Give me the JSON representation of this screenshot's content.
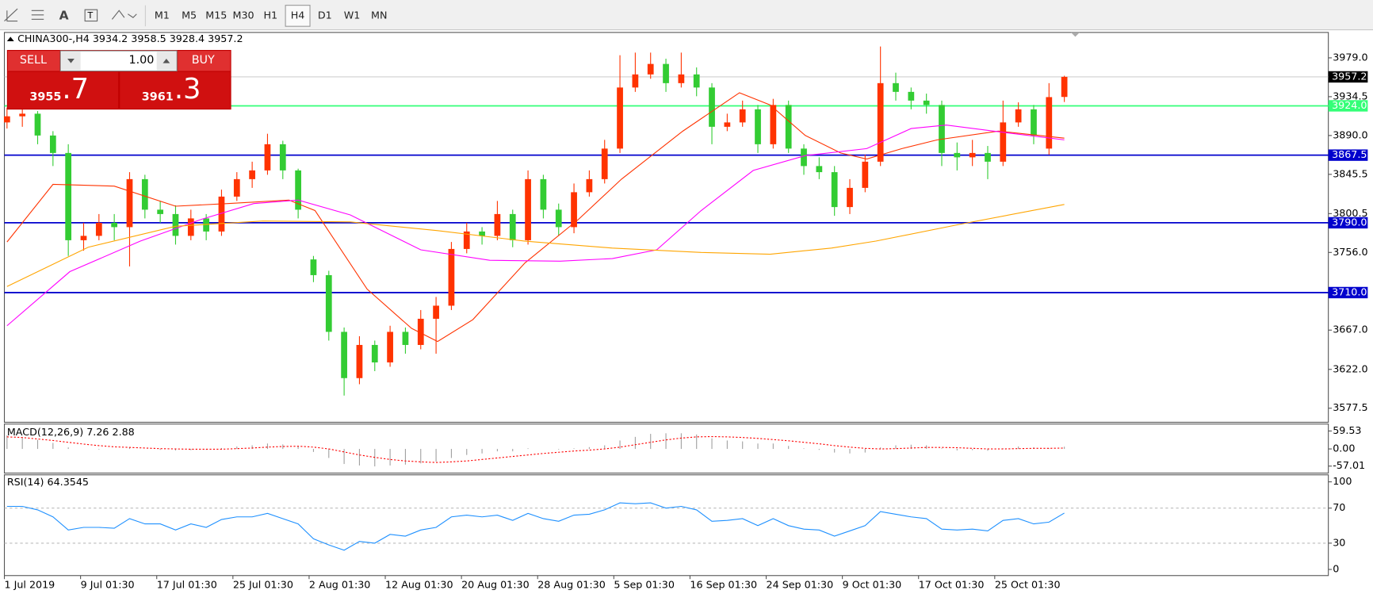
{
  "toolbar": {
    "tools": [
      "A"
    ],
    "timeframes": [
      "M1",
      "M5",
      "M15",
      "M30",
      "H1",
      "H4",
      "D1",
      "W1",
      "MN"
    ],
    "active_index": 5
  },
  "trade_panel": {
    "sell": "SELL",
    "lots": "1.00",
    "buy": "BUY",
    "bid_main": "3955",
    "bid_frac": ".7",
    "ask_main": "3961",
    "ask_frac": ".3"
  },
  "time_axis": [
    "1 Jul 2019",
    "9 Jul 01:30",
    "17 Jul 01:30",
    "25 Jul 01:30",
    "2 Aug 01:30",
    "12 Aug 01:30",
    "20 Aug 01:30",
    "28 Aug 01:30",
    "5 Sep 01:30",
    "16 Sep 01:30",
    "24 Sep 01:30",
    "9 Oct 01:30",
    "17 Oct 01:30",
    "25 Oct 01:30"
  ],
  "chart_data": [
    {
      "type": "candlestick",
      "title": "CHINA300-,H4  3934.2 3958.5 3928.4 3957.2",
      "up_color": "#ff3300",
      "down_color": "#33cc33",
      "ylim": [
        3561.4,
        4008.1
      ],
      "yticks": [
        {
          "value": 3979,
          "label": "3979.0"
        },
        3934.5,
        {
          "value": 3890,
          "label": "3890.0"
        },
        3845.5,
        3800.5,
        {
          "value": 3756,
          "label": "3756.0"
        },
        {
          "value": 3667,
          "label": "3667.0"
        },
        {
          "value": 3622,
          "label": "3622.0"
        },
        3577.5
      ],
      "levels": [
        {
          "value": 3957.2,
          "label": "3957.2",
          "color": "#c0c0c0",
          "box": "#000000"
        },
        {
          "value": 3924,
          "label": "3924.0",
          "color": "#33ff77",
          "box": "#33ff77"
        },
        {
          "value": 3867.5,
          "label": "3867.5",
          "color": "#0000cd",
          "box": "#0000cd"
        },
        {
          "value": 3790,
          "label": "3790.0",
          "color": "#0000cd",
          "box": "#0000cd"
        },
        {
          "value": 3710,
          "label": "3710.0",
          "color": "#0000cd",
          "box": "#0000cd"
        }
      ],
      "candles": [
        [
          3905,
          3922,
          3898,
          3912
        ],
        [
          3912,
          3920,
          3900,
          3915
        ],
        [
          3915,
          3918,
          3880,
          3890
        ],
        [
          3890,
          3895,
          3855,
          3870
        ],
        [
          3870,
          3880,
          3752,
          3770
        ],
        [
          3770,
          3790,
          3758,
          3775
        ],
        [
          3775,
          3800,
          3770,
          3790
        ],
        [
          3790,
          3800,
          3770,
          3785
        ],
        [
          3785,
          3848,
          3740,
          3840
        ],
        [
          3840,
          3845,
          3795,
          3805
        ],
        [
          3805,
          3815,
          3790,
          3800
        ],
        [
          3800,
          3810,
          3765,
          3775
        ],
        [
          3775,
          3805,
          3770,
          3795
        ],
        [
          3795,
          3800,
          3770,
          3780
        ],
        [
          3780,
          3828,
          3775,
          3820
        ],
        [
          3820,
          3848,
          3815,
          3840
        ],
        [
          3840,
          3860,
          3830,
          3850
        ],
        [
          3850,
          3892,
          3845,
          3880
        ],
        [
          3880,
          3884,
          3840,
          3850
        ],
        [
          3850,
          3852,
          3795,
          3805
        ],
        [
          3748,
          3752,
          3722,
          3730
        ],
        [
          3730,
          3735,
          3655,
          3665
        ],
        [
          3665,
          3670,
          3592,
          3612
        ],
        [
          3612,
          3660,
          3605,
          3650
        ],
        [
          3650,
          3655,
          3620,
          3630
        ],
        [
          3630,
          3672,
          3625,
          3665
        ],
        [
          3665,
          3670,
          3640,
          3650
        ],
        [
          3650,
          3690,
          3645,
          3680
        ],
        [
          3680,
          3705,
          3640,
          3695
        ],
        [
          3695,
          3768,
          3690,
          3760
        ],
        [
          3760,
          3790,
          3755,
          3780
        ],
        [
          3780,
          3785,
          3765,
          3775
        ],
        [
          3775,
          3815,
          3770,
          3800
        ],
        [
          3800,
          3805,
          3762,
          3770
        ],
        [
          3770,
          3850,
          3765,
          3840
        ],
        [
          3840,
          3845,
          3795,
          3805
        ],
        [
          3805,
          3812,
          3775,
          3785
        ],
        [
          3785,
          3835,
          3778,
          3825
        ],
        [
          3825,
          3850,
          3820,
          3840
        ],
        [
          3840,
          3885,
          3835,
          3875
        ],
        [
          3875,
          3982,
          3870,
          3945
        ],
        [
          3945,
          3985,
          3940,
          3960
        ],
        [
          3960,
          3985,
          3955,
          3972
        ],
        [
          3972,
          3978,
          3940,
          3950
        ],
        [
          3950,
          3985,
          3945,
          3960
        ],
        [
          3960,
          3968,
          3935,
          3945
        ],
        [
          3945,
          3950,
          3880,
          3900
        ],
        [
          3900,
          3915,
          3895,
          3905
        ],
        [
          3905,
          3930,
          3900,
          3920
        ],
        [
          3920,
          3925,
          3870,
          3880
        ],
        [
          3880,
          3932,
          3875,
          3925
        ],
        [
          3925,
          3930,
          3870,
          3875
        ],
        [
          3875,
          3880,
          3845,
          3855
        ],
        [
          3855,
          3865,
          3840,
          3848
        ],
        [
          3848,
          3855,
          3798,
          3808
        ],
        [
          3808,
          3840,
          3800,
          3830
        ],
        [
          3830,
          3868,
          3825,
          3860
        ],
        [
          3860,
          3992,
          3855,
          3950
        ],
        [
          3950,
          3962,
          3930,
          3940
        ],
        [
          3940,
          3945,
          3920,
          3930
        ],
        [
          3930,
          3938,
          3915,
          3925
        ],
        [
          3925,
          3930,
          3855,
          3870
        ],
        [
          3870,
          3882,
          3850,
          3865
        ],
        [
          3865,
          3885,
          3855,
          3870
        ],
        [
          3870,
          3878,
          3840,
          3860
        ],
        [
          3860,
          3930,
          3855,
          3905
        ],
        [
          3905,
          3928,
          3900,
          3920
        ],
        [
          3920,
          3925,
          3880,
          3890
        ],
        [
          3875,
          3950,
          3868,
          3934
        ],
        [
          3934.2,
          3958.5,
          3928.4,
          3957.2
        ]
      ],
      "ma_lines": [
        {
          "color": "#ff3300",
          "x": [
            0,
            3,
            7,
            11,
            14.4,
            18.4,
            20.1,
            23.5,
            26.4,
            28.1,
            30.4,
            33.8,
            37.3,
            40.1,
            44.1,
            47.8,
            49.8,
            52.1,
            54.4,
            56.1,
            58.4,
            60.7,
            64.7,
            69
          ],
          "values": [
            3768,
            3834,
            3832,
            3809,
            3812,
            3816,
            3804,
            3714,
            3669,
            3654,
            3679,
            3744,
            3794,
            3840,
            3895,
            3939,
            3925,
            3890,
            3870,
            3863,
            3875,
            3885,
            3895,
            3887
          ]
        },
        {
          "color": "#ff00ff",
          "x": [
            0,
            4.1,
            8.7,
            12.7,
            16.1,
            19,
            22.4,
            27,
            31.5,
            36.1,
            39.5,
            42.4,
            45.3,
            48.7,
            52.1,
            56.1,
            59,
            61.3,
            65.3,
            69
          ],
          "values": [
            3672,
            3734,
            3769,
            3794,
            3812,
            3816,
            3799,
            3759,
            3747,
            3746,
            3749,
            3759,
            3804,
            3850,
            3867,
            3875,
            3898,
            3902,
            3893,
            3885
          ]
        },
        {
          "color": "#ffa500",
          "x": [
            0,
            5.3,
            11,
            16.7,
            22.4,
            28.1,
            33.8,
            39.5,
            45.3,
            49.8,
            53.8,
            56.7,
            62.4,
            69
          ],
          "values": [
            3717,
            3762,
            3786,
            3792,
            3791,
            3781,
            3769,
            3761,
            3756,
            3754,
            3761,
            3769,
            3789,
            3811
          ]
        }
      ]
    },
    {
      "type": "macd",
      "title": "MACD(12,26,9) 7.26 2.88",
      "hist_color": "#a0a0a0",
      "signal_color": "#ff0000",
      "ylim": [
        -80.2,
        82.7
      ],
      "yticks": [
        59.53,
        {
          "value": 0,
          "label": "0.00"
        },
        -57.01
      ],
      "values": [
        45,
        40,
        30,
        20,
        5,
        0,
        -2,
        0,
        5,
        0,
        -3,
        -5,
        -4,
        -3,
        3,
        8,
        12,
        18,
        15,
        8,
        -10,
        -30,
        -50,
        -55,
        -58,
        -55,
        -52,
        -48,
        -42,
        -30,
        -20,
        -15,
        -8,
        -8,
        2,
        0,
        -2,
        2,
        6,
        12,
        28,
        40,
        50,
        52,
        52,
        48,
        35,
        28,
        25,
        18,
        18,
        10,
        2,
        -3,
        -12,
        -15,
        -12,
        5,
        12,
        14,
        12,
        2,
        -5,
        -4,
        -6,
        2,
        8,
        5,
        2,
        7.26
      ],
      "signal": [
        40,
        38,
        33,
        28,
        22,
        16,
        11,
        7,
        5,
        3,
        1,
        0,
        -1,
        -1,
        -1,
        1,
        3,
        6,
        8,
        9,
        6,
        0,
        -10,
        -20,
        -28,
        -35,
        -40,
        -43,
        -45,
        -43,
        -40,
        -35,
        -30,
        -25,
        -20,
        -15,
        -11,
        -7,
        -4,
        0,
        6,
        14,
        22,
        30,
        36,
        40,
        41,
        40,
        38,
        35,
        31,
        27,
        22,
        17,
        11,
        6,
        2,
        0,
        1,
        3,
        5,
        5,
        4,
        2,
        0,
        0,
        1,
        2,
        2,
        2.88
      ]
    },
    {
      "type": "line",
      "title": "RSI(14) 64.3545",
      "color": "#1e90ff",
      "ylim": [
        -7,
        108
      ],
      "yticks": [
        100,
        70,
        30,
        0
      ],
      "levels": [
        70,
        30
      ],
      "values": [
        72,
        72,
        68,
        60,
        45,
        48,
        48,
        47,
        58,
        52,
        52,
        45,
        52,
        48,
        57,
        60,
        60,
        64,
        58,
        52,
        35,
        28,
        22,
        32,
        30,
        40,
        38,
        45,
        48,
        60,
        62,
        60,
        62,
        56,
        64,
        58,
        55,
        62,
        63,
        68,
        76,
        75,
        76,
        70,
        72,
        68,
        55,
        56,
        58,
        50,
        58,
        50,
        46,
        45,
        38,
        44,
        50,
        66,
        63,
        60,
        58,
        46,
        45,
        46,
        44,
        56,
        58,
        52,
        54,
        64.3545
      ]
    }
  ]
}
